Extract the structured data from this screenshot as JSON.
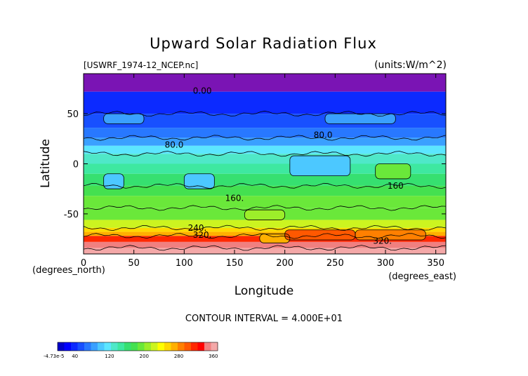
{
  "chart_data": {
    "type": "heatmap",
    "title": "Upward Solar Radiation Flux",
    "source_label": "[USWRF_1974-12_NCEP.nc]",
    "units_label": "(units:W/m^2)",
    "xlabel": "Longitude",
    "ylabel": "Latitude",
    "x_unit_label": "(degrees_east)",
    "y_unit_label": "(degrees_north)",
    "xlim": [
      0,
      360
    ],
    "ylim": [
      -90,
      90
    ],
    "x_ticks": [
      0,
      50,
      100,
      150,
      200,
      250,
      300,
      350
    ],
    "y_ticks": [
      -50,
      0,
      50
    ],
    "grid": false,
    "contour_interval_text": "CONTOUR INTERVAL = 4.000E+01",
    "contour_labels": [
      {
        "text": "0.00",
        "lon": 118,
        "lat": 70
      },
      {
        "text": "80.0",
        "lon": 90,
        "lat": 16
      },
      {
        "text": "80.0",
        "lon": 238,
        "lat": 26
      },
      {
        "text": "160.",
        "lon": 150,
        "lat": -37
      },
      {
        "text": "160",
        "lon": 310,
        "lat": -25
      },
      {
        "text": "240.",
        "lon": 113,
        "lat": -67
      },
      {
        "text": "320.",
        "lon": 118,
        "lat": -74
      },
      {
        "text": "320.",
        "lon": 297,
        "lat": -80
      }
    ],
    "zonal_profile": [
      {
        "lat_min": 72,
        "lat_max": 90,
        "value": 0
      },
      {
        "lat_min": 50,
        "lat_max": 72,
        "value": 35
      },
      {
        "lat_min": 36,
        "lat_max": 50,
        "value": 60
      },
      {
        "lat_min": 26,
        "lat_max": 36,
        "value": 75
      },
      {
        "lat_min": 18,
        "lat_max": 26,
        "value": 90
      },
      {
        "lat_min": 10,
        "lat_max": 18,
        "value": 115
      },
      {
        "lat_min": 0,
        "lat_max": 10,
        "value": 130
      },
      {
        "lat_min": -10,
        "lat_max": 0,
        "value": 140
      },
      {
        "lat_min": -22,
        "lat_max": -10,
        "value": 155
      },
      {
        "lat_min": -32,
        "lat_max": -22,
        "value": 170
      },
      {
        "lat_min": -44,
        "lat_max": -32,
        "value": 185
      },
      {
        "lat_min": -56,
        "lat_max": -44,
        "value": 200
      },
      {
        "lat_min": -64,
        "lat_max": -56,
        "value": 220
      },
      {
        "lat_min": -68,
        "lat_max": -64,
        "value": 250
      },
      {
        "lat_min": -72,
        "lat_max": -68,
        "value": 275
      },
      {
        "lat_min": -78,
        "lat_max": -72,
        "value": 320
      },
      {
        "lat_min": -84,
        "lat_max": -78,
        "value": 345
      },
      {
        "lat_min": -90,
        "lat_max": -84,
        "value": 365
      }
    ],
    "anomalies": [
      {
        "lon_min": 20,
        "lon_max": 60,
        "lat_min": 40,
        "lat_max": 50,
        "value": 85
      },
      {
        "lon_min": 240,
        "lon_max": 310,
        "lat_min": 40,
        "lat_max": 50,
        "value": 85
      },
      {
        "lon_min": 205,
        "lon_max": 265,
        "lat_min": -12,
        "lat_max": 8,
        "value": 95
      },
      {
        "lon_min": 20,
        "lon_max": 40,
        "lat_min": -25,
        "lat_max": -10,
        "value": 105
      },
      {
        "lon_min": 100,
        "lon_max": 130,
        "lat_min": -25,
        "lat_max": -10,
        "value": 105
      },
      {
        "lon_min": 290,
        "lon_max": 325,
        "lat_min": -15,
        "lat_max": 0,
        "value": 185
      },
      {
        "lon_min": 160,
        "lon_max": 200,
        "lat_min": -56,
        "lat_max": -46,
        "value": 215
      },
      {
        "lon_min": 175,
        "lon_max": 205,
        "lat_min": -79,
        "lat_max": -70,
        "value": 275
      },
      {
        "lon_min": 200,
        "lon_max": 270,
        "lat_min": -76,
        "lat_max": -66,
        "value": 300
      },
      {
        "lon_min": 270,
        "lon_max": 340,
        "lat_min": -76,
        "lat_max": -66,
        "value": 290
      }
    ],
    "colorbar": {
      "min_label": "-4.73e-5",
      "tick_labels": [
        "40",
        "120",
        "200",
        "280",
        "360"
      ],
      "tick_values": [
        40,
        120,
        200,
        280,
        360
      ],
      "range": [
        0,
        370
      ],
      "colors": [
        "#0000c8",
        "#0000ff",
        "#0c2aff",
        "#1850ff",
        "#2878ff",
        "#3aa0ff",
        "#4cc8ff",
        "#5ce6ff",
        "#4fe8c8",
        "#3ee8a0",
        "#36e070",
        "#44e050",
        "#6ae83a",
        "#9cee2a",
        "#ccf420",
        "#ffff00",
        "#ffd800",
        "#ffb000",
        "#ff8000",
        "#ff5800",
        "#ff2800",
        "#ff0000",
        "#f08080",
        "#f4a8a8"
      ]
    }
  }
}
